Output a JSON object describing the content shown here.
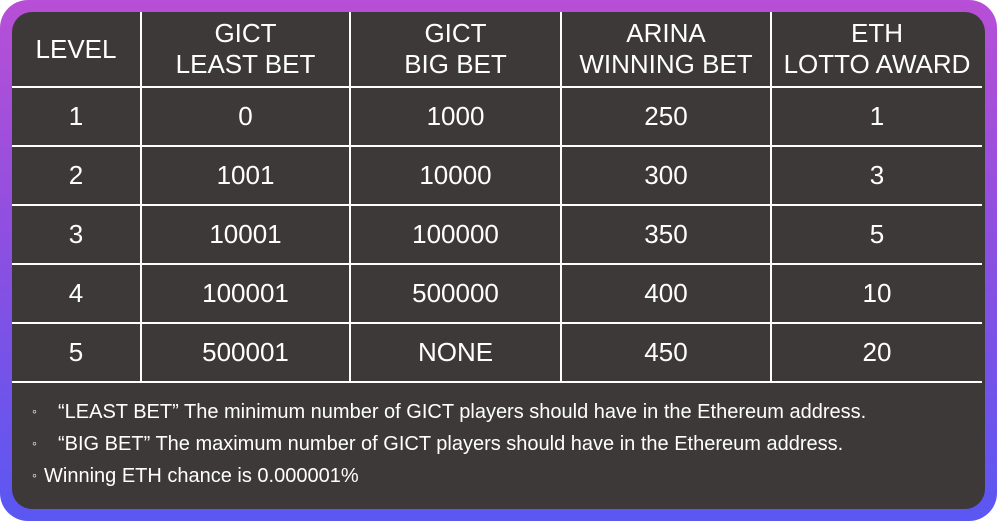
{
  "table": {
    "headers": [
      [
        "LEVEL"
      ],
      [
        "GICT",
        "LEAST BET"
      ],
      [
        "GICT",
        "BIG BET"
      ],
      [
        "ARINA",
        "WINNING BET"
      ],
      [
        "ETH",
        "LOTTO AWARD"
      ]
    ],
    "rows": [
      [
        "1",
        "0",
        "1000",
        "250",
        "1"
      ],
      [
        "2",
        "1001",
        "10000",
        "300",
        "3"
      ],
      [
        "3",
        "10001",
        "100000",
        "350",
        "5"
      ],
      [
        "4",
        "100001",
        "500000",
        "400",
        "10"
      ],
      [
        "5",
        "500001",
        "NONE",
        "450",
        "20"
      ]
    ]
  },
  "notes": [
    {
      "bullet": "◦",
      "term": "“LEAST BET”",
      "text": "The minimum number of GICT players should have in the Ethereum address."
    },
    {
      "bullet": "◦",
      "term": "“BIG BET”",
      "text": "The maximum number of GICT players should have in the Ethereum address."
    },
    {
      "bullet": "◦",
      "term": "",
      "text": "Winning ETH chance is 0.000001%"
    }
  ],
  "colors": {
    "panel_background": "#3d3939",
    "border_gradient_top": "#b84fd6",
    "border_gradient_bottom": "#5a57f2",
    "text": "#ffffff",
    "grid_lines": "#ffffff"
  }
}
